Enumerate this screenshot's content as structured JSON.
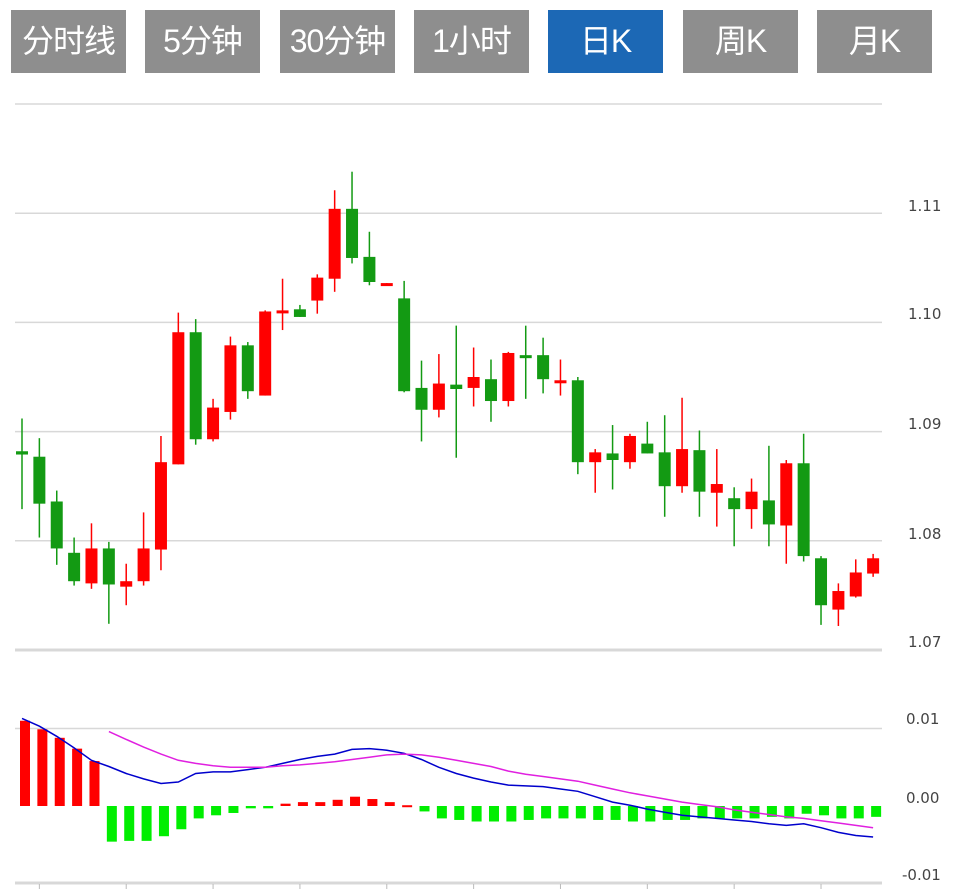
{
  "tabs": [
    {
      "label": "分时线",
      "active": false
    },
    {
      "label": "5分钟",
      "active": false
    },
    {
      "label": "30分钟",
      "active": false
    },
    {
      "label": "1小时",
      "active": false
    },
    {
      "label": "日K",
      "active": true
    },
    {
      "label": "周K",
      "active": false
    },
    {
      "label": "月K",
      "active": false
    }
  ],
  "colors": {
    "up": "#ff0000",
    "down": "#139a13",
    "hist_up": "#ff0000",
    "hist_down": "#00ee00",
    "dif": "#0000cc",
    "dea": "#e020e0",
    "active_tab": "#1c68b5",
    "tab": "#8e8e8e",
    "grid": "#d8d8d8"
  },
  "chart_data": [
    {
      "type": "candlestick",
      "yticks": [
        "1.11",
        "1.10",
        "1.09",
        "1.08",
        "1.07"
      ],
      "ylim": [
        1.07,
        1.12
      ],
      "grid": true,
      "ohlc": [
        [
          1.0882,
          1.0912,
          1.0829,
          1.0879
        ],
        [
          1.0877,
          1.0894,
          1.0803,
          1.0834
        ],
        [
          1.0836,
          1.0846,
          1.0778,
          1.0793
        ],
        [
          1.0789,
          1.0803,
          1.0759,
          1.0763
        ],
        [
          1.0761,
          1.0816,
          1.0756,
          1.0793
        ],
        [
          1.0793,
          1.0799,
          1.0724,
          1.076
        ],
        [
          1.0758,
          1.0779,
          1.0741,
          1.0763
        ],
        [
          1.0763,
          1.0826,
          1.0759,
          1.0793
        ],
        [
          1.0792,
          1.0896,
          1.0773,
          1.0872
        ],
        [
          1.087,
          1.1009,
          1.087,
          1.0991
        ],
        [
          1.0991,
          1.1003,
          1.0888,
          1.0893
        ],
        [
          1.0893,
          1.093,
          1.0891,
          1.0922
        ],
        [
          1.0918,
          1.0987,
          1.0911,
          1.0979
        ],
        [
          1.0979,
          1.0982,
          1.093,
          1.0937
        ],
        [
          1.0933,
          1.1011,
          1.0933,
          1.101
        ],
        [
          1.101,
          1.104,
          1.0993,
          1.1011
        ],
        [
          1.1012,
          1.1016,
          1.1005,
          1.1005
        ],
        [
          1.102,
          1.1044,
          1.1008,
          1.1041
        ],
        [
          1.104,
          1.1121,
          1.1028,
          1.1104
        ],
        [
          1.1104,
          1.1138,
          1.1054,
          1.1059
        ],
        [
          1.106,
          1.1083,
          1.1034,
          1.1037
        ],
        [
          1.1034,
          1.1036,
          1.1034,
          1.1036
        ],
        [
          1.1022,
          1.1038,
          1.0936,
          1.0937
        ],
        [
          1.094,
          1.0965,
          1.0891,
          1.092
        ],
        [
          1.092,
          1.0971,
          1.0913,
          1.0944
        ],
        [
          1.0943,
          1.0997,
          1.0876,
          1.0939
        ],
        [
          1.094,
          1.0977,
          1.0923,
          1.095
        ],
        [
          1.0948,
          1.0966,
          1.0909,
          1.0928
        ],
        [
          1.0928,
          1.0973,
          1.0923,
          1.0972
        ],
        [
          1.097,
          1.0997,
          1.093,
          1.0969
        ],
        [
          1.097,
          1.0986,
          1.0935,
          1.0948
        ],
        [
          1.0945,
          1.0966,
          1.0933,
          1.0947
        ],
        [
          1.0947,
          1.095,
          1.0861,
          1.0872
        ],
        [
          1.0872,
          1.0884,
          1.0844,
          1.0881
        ],
        [
          1.088,
          1.0906,
          1.0847,
          1.0874
        ],
        [
          1.0872,
          1.0898,
          1.0866,
          1.0896
        ],
        [
          1.0889,
          1.0909,
          1.088,
          1.088
        ],
        [
          1.0881,
          1.0915,
          1.0822,
          1.085
        ],
        [
          1.085,
          1.0931,
          1.0844,
          1.0884
        ],
        [
          1.0883,
          1.0901,
          1.0822,
          1.0845
        ],
        [
          1.0844,
          1.0884,
          1.0813,
          1.0852
        ],
        [
          1.0839,
          1.0849,
          1.0795,
          1.0829
        ],
        [
          1.0829,
          1.0857,
          1.0811,
          1.0845
        ],
        [
          1.0837,
          1.0887,
          1.0795,
          1.0815
        ],
        [
          1.0814,
          1.0874,
          1.0779,
          1.0871
        ],
        [
          1.0871,
          1.0898,
          1.0781,
          1.0786
        ],
        [
          1.0784,
          1.0786,
          1.0723,
          1.0741
        ],
        [
          1.0737,
          1.0761,
          1.0722,
          1.0754
        ],
        [
          1.0749,
          1.0783,
          1.0748,
          1.0771
        ],
        [
          1.077,
          1.0788,
          1.0767,
          1.0784
        ]
      ]
    },
    {
      "type": "bar+line",
      "yticks": [
        "0.01",
        "0.00",
        "-0.01"
      ],
      "ylim": [
        -0.01,
        0.01
      ],
      "grid": true,
      "histogram": [
        0.011,
        0.0099,
        0.0088,
        0.0074,
        0.0058,
        -0.0046,
        -0.0045,
        -0.0045,
        -0.0039,
        -0.003,
        -0.0016,
        -0.0012,
        -0.0009,
        -0.0003,
        -0.0003,
        0.0003,
        0.0005,
        0.0005,
        0.0008,
        0.0012,
        0.0009,
        0.0005,
        0.0001,
        -0.0007,
        -0.0016,
        -0.0018,
        -0.002,
        -0.002,
        -0.002,
        -0.0018,
        -0.0016,
        -0.0016,
        -0.0016,
        -0.0018,
        -0.0018,
        -0.002,
        -0.002,
        -0.0018,
        -0.0018,
        -0.0016,
        -0.0016,
        -0.0016,
        -0.0016,
        -0.0014,
        -0.0016,
        -0.001,
        -0.0012,
        -0.0016,
        -0.0016,
        -0.0014
      ],
      "series": [
        {
          "values": [
            0.0113,
            0.0103,
            0.009,
            0.0075,
            0.0059,
            0.0051,
            0.0042,
            0.0035,
            0.0029,
            0.0031,
            0.0042,
            0.0044,
            0.0044,
            0.0047,
            0.005,
            0.0055,
            0.006,
            0.0064,
            0.0067,
            0.0073,
            0.0074,
            0.0072,
            0.0068,
            0.006,
            0.005,
            0.0042,
            0.0036,
            0.0031,
            0.0027,
            0.0026,
            0.0025,
            0.0022,
            0.0019,
            0.0012,
            0.0005,
            0.0001,
            -0.0004,
            -0.0008,
            -0.0012,
            -0.0014,
            -0.0016,
            -0.0018,
            -0.002,
            -0.0023,
            -0.0025,
            -0.0023,
            -0.0028,
            -0.0034,
            -0.0038,
            -0.004
          ]
        },
        {
          "values": [
            null,
            null,
            null,
            null,
            null,
            0.0096,
            0.0086,
            0.0076,
            0.0067,
            0.0059,
            0.0055,
            0.0052,
            0.005,
            0.005,
            0.005,
            0.0052,
            0.0053,
            0.0055,
            0.0057,
            0.006,
            0.0063,
            0.0066,
            0.0067,
            0.0066,
            0.0063,
            0.0059,
            0.0055,
            0.0051,
            0.0045,
            0.0041,
            0.0038,
            0.0035,
            0.0032,
            0.0027,
            0.0022,
            0.0017,
            0.0013,
            0.0009,
            0.0005,
            0.0002,
            -0.0001,
            -0.0005,
            -0.0008,
            -0.0011,
            -0.0014,
            -0.0016,
            -0.0019,
            -0.0022,
            -0.0025,
            -0.0028
          ]
        }
      ]
    }
  ]
}
